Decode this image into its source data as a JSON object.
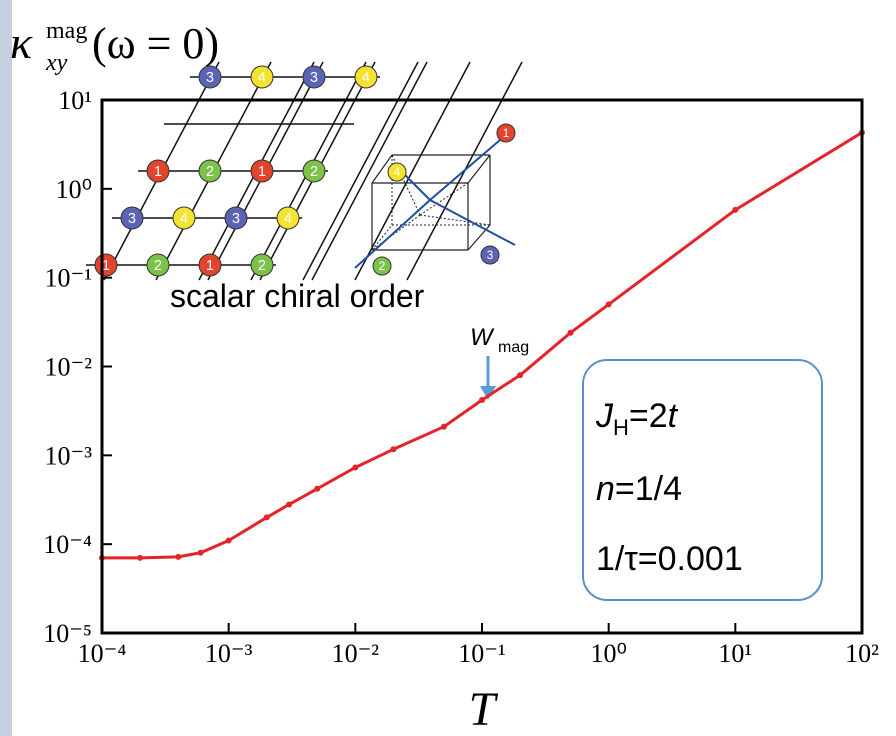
{
  "chart_data": {
    "type": "line",
    "ylabel": {
      "symbol": "κ",
      "subscript": "xy",
      "superscript": "mag",
      "argument": "(ω = 0)"
    },
    "xlabel": "T",
    "log_x": true,
    "log_y": true,
    "xlim": [
      0.0001,
      100
    ],
    "ylim": [
      1e-05,
      10
    ],
    "xticks": [
      {
        "value": 0.0001,
        "label": "10⁻⁴"
      },
      {
        "value": 0.001,
        "label": "10⁻³"
      },
      {
        "value": 0.01,
        "label": "10⁻²"
      },
      {
        "value": 0.1,
        "label": "10⁻¹"
      },
      {
        "value": 1,
        "label": "10⁰"
      },
      {
        "value": 10,
        "label": "10¹"
      },
      {
        "value": 100,
        "label": "10²"
      }
    ],
    "yticks": [
      {
        "value": 1e-05,
        "label": "10⁻⁵"
      },
      {
        "value": 0.0001,
        "label": "10⁻⁴"
      },
      {
        "value": 0.001,
        "label": "10⁻³"
      },
      {
        "value": 0.01,
        "label": "10⁻²"
      },
      {
        "value": 0.1,
        "label": "10⁻¹"
      },
      {
        "value": 1,
        "label": "10⁰"
      },
      {
        "value": 10,
        "label": "10¹"
      }
    ],
    "series": [
      {
        "color": "#e4242b",
        "x": [
          0.0001,
          0.0002,
          0.0004,
          0.0006,
          0.001,
          0.002,
          0.003,
          0.005,
          0.01,
          0.02,
          0.05,
          0.1,
          0.2,
          0.5,
          1,
          10,
          100
        ],
        "values": [
          7e-05,
          7e-05,
          7.2e-05,
          8e-05,
          0.00011,
          0.0002,
          0.00028,
          0.00042,
          0.00073,
          0.00117,
          0.0021,
          0.0042,
          0.008,
          0.024,
          0.05,
          0.58,
          4.3
        ]
      }
    ],
    "annotations": {
      "inset_caption": "scalar chiral order",
      "marker": {
        "text": "W",
        "subscript": "mag"
      }
    },
    "parameters": [
      [
        "J",
        "H",
        "=2",
        "t"
      ],
      [
        "n",
        "=1/4"
      ],
      [
        "1/τ=0.001"
      ]
    ],
    "site_labels": [
      "1",
      "2",
      "3",
      "4"
    ]
  }
}
